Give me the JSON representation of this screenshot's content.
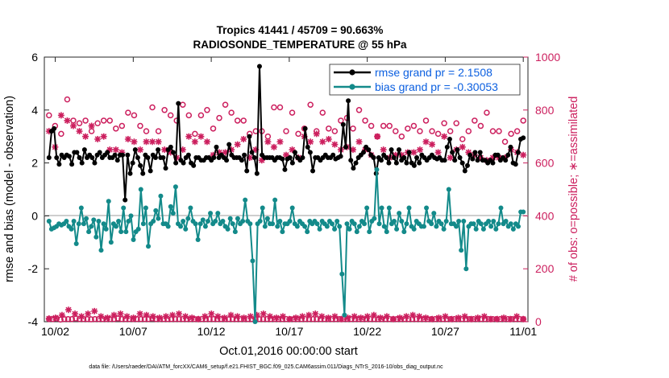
{
  "chart_data": {
    "type": "line",
    "title": "Tropics 41441 / 45709 = 90.663%",
    "subtitle": "RADIOSONDE_TEMPERATURE @ 55 hPa",
    "xlabel": "Oct.01,2016 00:00:00 start",
    "ylabel_left": "rmse and bias (model - observation)",
    "ylabel_right": "# of obs: o=possible; ∗=assimilated",
    "ylim_left": [
      -4,
      6
    ],
    "ylim_right": [
      0,
      1000
    ],
    "yticks_left": [
      "6",
      "4",
      "2",
      "0",
      "-2",
      "-4"
    ],
    "yticks_right": [
      "1000",
      "800",
      "600",
      "400",
      "200",
      "0"
    ],
    "xlim": [
      1.3,
      32.3
    ],
    "xticks": [
      {
        "day": 2,
        "label": "10/02"
      },
      {
        "day": 7,
        "label": "10/07"
      },
      {
        "day": 12,
        "label": "10/12"
      },
      {
        "day": 17,
        "label": "10/17"
      },
      {
        "day": 22,
        "label": "10/22"
      },
      {
        "day": 27,
        "label": "10/27"
      },
      {
        "day": 32,
        "label": "11/01"
      }
    ],
    "legend": {
      "position": "top-right",
      "entries": [
        "rmse grand pr = 2.1508",
        "bias grand pr = -0.30053"
      ]
    },
    "series": [
      {
        "name": "rmse grand pr = 2.1508",
        "axis": "left",
        "color": "#000000",
        "values": [
          2.2,
          3.2,
          3.3,
          2.2,
          1.95,
          2.3,
          2.2,
          2.3,
          2.25,
          1.95,
          2.4,
          2.4,
          2.2,
          2.0,
          2.5,
          2.2,
          2.3,
          2.2,
          2.0,
          2.3,
          2.4,
          2.2,
          2.3,
          2.4,
          2.2,
          2.2,
          2.3,
          2.1,
          2.3,
          2.3,
          0.6,
          2.3,
          1.6,
          2.0,
          2.5,
          2.2,
          1.9,
          1.6,
          2.3,
          2.2,
          1.7,
          2.3,
          2.2,
          2.5,
          2.2,
          2.2,
          1.8,
          2.5,
          2.6,
          2.4,
          2.0,
          4.25,
          2.1,
          2.0,
          2.2,
          2.3,
          2.0,
          1.9,
          2.2,
          2.2,
          2.1,
          2.1,
          2.2,
          2.2,
          2.1,
          2.2,
          2.6,
          2.2,
          2.3,
          2.2,
          2.1,
          2.7,
          2.3,
          2.2,
          2.2,
          2.2,
          2.1,
          2.3,
          1.7,
          3.0,
          2.4,
          2.2,
          1.6,
          5.65,
          2.3,
          2.2,
          2.2,
          2.2,
          2.2,
          2.1,
          2.2,
          2.2,
          2.15,
          1.75,
          2.15,
          2.2,
          2.0,
          2.4,
          2.2,
          2.1,
          2.2,
          3.3,
          2.6,
          2.4,
          1.7,
          2.2,
          2.2,
          2.1,
          2.2,
          2.3,
          2.2,
          2.2,
          2.3,
          2.15,
          2.2,
          2.25,
          3.45,
          2.6,
          4.35,
          2.1,
          1.8,
          2.0,
          2.2,
          2.3,
          2.4,
          2.6,
          2.5,
          2.3,
          2.2,
          1.6,
          2.2,
          2.1,
          2.3,
          2.2,
          2.0,
          2.5,
          2.2,
          2.0,
          2.5,
          2.1,
          2.2,
          2.0,
          2.4,
          2.0,
          1.9,
          2.2,
          2.0,
          2.3,
          2.2,
          2.1,
          2.2,
          2.3,
          2.2,
          2.15,
          2.2,
          2.1,
          2.1,
          2.6,
          2.9,
          2.4,
          2.1,
          2.5,
          2.2,
          2.0,
          1.7,
          1.9,
          2.3,
          2.15,
          2.4,
          2.1,
          2.4,
          2.1,
          2.1,
          2.0,
          2.1,
          2.0,
          2.3,
          2.3,
          2.1,
          2.2,
          2.1,
          2.3,
          2.6,
          2.0,
          1.95,
          2.4,
          2.9,
          2.95
        ]
      },
      {
        "name": "bias grand pr = -0.30053",
        "axis": "left",
        "color": "#138a8a",
        "values": [
          -0.2,
          -0.5,
          -0.45,
          -0.4,
          -0.3,
          -0.35,
          -0.3,
          -0.2,
          -0.4,
          -0.5,
          -0.2,
          -1.05,
          -0.3,
          0.3,
          -0.3,
          -0.1,
          -0.6,
          -0.4,
          -0.15,
          -0.8,
          -0.2,
          -1.3,
          -0.3,
          -0.5,
          0.55,
          -1.0,
          -0.3,
          -0.4,
          -0.2,
          -0.6,
          0.3,
          -0.6,
          -0.2,
          0.0,
          -0.9,
          -0.6,
          -0.5,
          1.0,
          -0.3,
          0.3,
          -1.15,
          -0.3,
          -0.2,
          0.2,
          -0.1,
          0.75,
          -0.3,
          -0.3,
          -0.4,
          0.35,
          0.1,
          1.1,
          -0.3,
          -0.4,
          -0.2,
          -0.5,
          -0.1,
          0.3,
          -0.2,
          -0.3,
          -0.9,
          -0.3,
          -0.15,
          -0.4,
          -0.2,
          0.1,
          -0.3,
          -0.2,
          0.1,
          -0.3,
          -0.2,
          -0.4,
          -0.5,
          -0.1,
          -0.3,
          -0.6,
          -0.1,
          -0.3,
          -0.2,
          0.6,
          -0.2,
          -0.3,
          -1.7,
          -4.0,
          -0.3,
          -0.2,
          0.3,
          -0.4,
          -0.1,
          -0.3,
          -0.3,
          0.6,
          -0.4,
          -0.2,
          -0.6,
          -0.3,
          -0.3,
          -0.2,
          0.3,
          -0.3,
          -0.4,
          -0.2,
          -0.3,
          -0.4,
          -0.6,
          -0.2,
          -0.3,
          -0.2,
          -0.3,
          -0.5,
          -0.2,
          -0.3,
          -0.4,
          -0.2,
          -0.3,
          -0.5,
          -0.2,
          -0.4,
          -2.2,
          -3.75,
          -0.3,
          -0.5,
          -0.2,
          -0.3,
          -0.6,
          -0.4,
          -0.2,
          -0.3,
          0.3,
          -0.6,
          -0.2,
          -0.1,
          1.75,
          -0.3,
          0.3,
          -0.4,
          -0.6,
          0.3,
          -0.3,
          -0.2,
          -0.5,
          0.1,
          -0.2,
          -0.6,
          -0.3,
          0.3,
          -0.4,
          -0.5,
          -0.2,
          -0.3,
          -0.4,
          -0.4,
          0.3,
          -0.2,
          -0.3,
          0.1,
          -0.4,
          -0.2,
          -0.3,
          -0.5,
          -0.2,
          1.0,
          -0.3,
          -0.3,
          -0.4,
          -0.2,
          -1.3,
          -0.2,
          -2.0,
          -0.4,
          -0.3,
          -0.3,
          -0.5,
          -0.2,
          -0.3,
          -0.5,
          -0.3,
          -0.2,
          -0.4,
          -0.2,
          -0.5,
          -0.3,
          0.3,
          -0.3,
          -0.2,
          -0.4,
          -0.3,
          -0.5,
          -0.3,
          -0.4,
          0.15,
          0.15
        ]
      },
      {
        "name": "possible obs",
        "axis": "right",
        "marker": "o",
        "color": "#cc1f5e",
        "values": [
          780,
          740,
          710,
          840,
          760,
          750,
          760,
          720,
          750,
          760,
          760,
          730,
          740,
          790,
          780,
          740,
          720,
          810,
          720,
          800,
          780,
          760,
          820,
          780,
          710,
          780,
          800,
          730,
          770,
          820,
          790,
          760,
          760,
          710,
          720,
          720,
          700,
          810,
          810,
          720,
          790,
          710,
          730,
          820,
          720,
          790,
          730,
          720,
          760,
          770,
          730,
          800,
          760,
          740,
          700,
          740,
          740,
          720,
          700,
          730,
          740,
          720,
          760,
          720,
          710,
          750,
          720,
          750,
          690,
          720,
          760,
          740,
          790,
          720,
          720,
          680,
          710,
          720,
          760
        ]
      },
      {
        "name": "assimilated obs",
        "axis": "right",
        "marker": "*",
        "color": "#cc1f5e",
        "values": [
          720,
          660,
          780,
          760,
          740,
          720,
          700,
          740,
          690,
          700,
          650,
          650,
          640,
          690,
          680,
          650,
          680,
          680,
          680,
          650,
          640,
          620,
          650,
          700,
          680,
          700,
          680,
          630,
          640,
          640,
          650,
          670,
          690,
          620,
          650,
          610,
          680,
          660,
          680,
          630,
          650,
          620,
          700,
          680,
          710,
          680,
          690,
          670,
          650,
          660,
          650,
          680,
          650,
          630,
          700,
          650,
          620,
          630,
          630,
          640,
          640,
          650,
          680,
          670,
          640,
          700,
          620,
          650,
          660,
          640,
          630,
          620,
          610,
          620,
          620,
          620,
          650,
          640,
          630
        ]
      },
      {
        "name": "possible obs (bottom row)",
        "axis": "right",
        "marker": "o",
        "color": "#cc1f5e",
        "values": [
          10,
          10,
          12,
          8,
          10,
          10,
          10,
          12,
          10,
          10,
          10,
          9,
          10,
          10,
          10,
          10,
          10,
          10,
          12,
          10,
          10,
          10,
          10,
          10,
          10,
          10,
          10,
          12,
          10,
          10,
          10,
          10,
          10,
          10,
          10,
          10,
          10,
          10,
          10,
          10,
          10,
          10,
          10,
          10,
          10,
          10,
          10,
          10,
          10,
          10,
          10,
          10,
          10,
          10,
          10,
          10,
          10,
          10,
          10,
          10,
          10,
          10,
          10,
          10,
          10,
          10,
          10,
          10,
          10,
          10,
          10,
          10,
          10,
          10,
          10,
          10,
          10,
          10,
          10,
          10,
          10,
          10,
          10,
          10,
          10,
          10,
          10,
          10,
          10,
          10,
          10,
          10,
          10,
          10,
          10,
          10,
          10,
          10,
          10,
          10,
          10,
          10,
          10,
          10,
          10,
          10,
          10,
          10,
          10,
          10,
          10,
          10,
          10,
          10,
          10,
          10,
          10,
          10,
          10,
          10,
          10,
          10,
          10,
          10,
          10
        ]
      },
      {
        "name": "assimilated obs (bottom row)",
        "axis": "right",
        "marker": "*",
        "color": "#cc1f5e",
        "values": [
          12,
          15,
          25,
          45,
          30,
          20,
          30,
          40,
          20,
          15,
          25,
          30,
          20,
          15,
          30,
          25,
          20,
          15,
          20,
          25,
          30,
          20,
          15,
          10,
          20,
          30,
          20,
          15,
          25,
          20,
          15,
          20,
          25,
          30,
          20,
          15,
          20,
          10,
          15,
          20,
          25,
          30,
          20,
          15,
          20,
          10,
          15,
          20,
          15,
          20,
          25,
          15,
          20,
          10,
          15,
          20,
          25,
          20,
          15,
          10,
          15,
          20,
          10,
          15,
          20,
          10,
          15,
          20,
          10,
          10,
          15,
          10,
          20,
          10
        ]
      }
    ]
  },
  "footer": "data file: /Users/raeder/DAI/ATM_forcXX/CAM6_setup/f.e21.FHIST_BGC.f09_025.CAM6assim.011/Diags_NTrS_2016-10/obs_diag_output.nc"
}
